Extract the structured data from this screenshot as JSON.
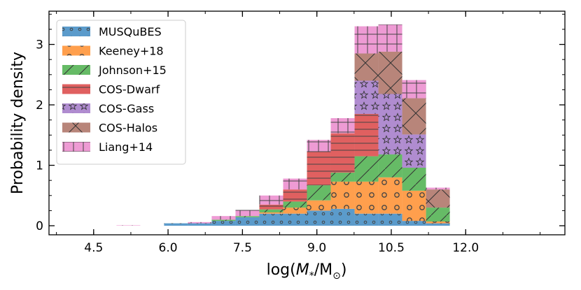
{
  "chart_data": {
    "type": "bar",
    "stacked": true,
    "title": "",
    "xlabel_prefix": "log(",
    "xlabel_math": "M",
    "xlabel_sub": "*",
    "xlabel_mid": "/M",
    "xlabel_sub2": "⊙",
    "xlabel_suffix": ")",
    "ylabel": "Probability density",
    "xlim": [
      3.6,
      14.0
    ],
    "ylim": [
      -0.15,
      3.55
    ],
    "xticks": [
      4.5,
      6.0,
      7.5,
      9.0,
      10.5,
      12.0
    ],
    "xtick_labels": [
      "4.5",
      "6.0",
      "7.5",
      "9.0",
      "10.5",
      "12.0"
    ],
    "yticks": [
      0,
      1,
      2,
      3
    ],
    "ytick_labels": [
      "0",
      "1",
      "2",
      "3"
    ],
    "bin_edges": [
      4.0,
      4.48,
      4.96,
      5.44,
      5.92,
      6.4,
      6.88,
      7.36,
      7.84,
      8.32,
      8.8,
      9.28,
      9.76,
      10.24,
      10.72,
      11.2,
      11.68,
      12.16,
      12.64,
      13.12
    ],
    "legend_location": "upper-left",
    "series": [
      {
        "name": "MUSQuBES",
        "color": "#5b9bcb",
        "hatch": "dots",
        "values": [
          0,
          0,
          0,
          0,
          0.04,
          0.04,
          0.08,
          0.14,
          0.2,
          0.2,
          0.25,
          0.28,
          0.2,
          0.2,
          0.08,
          0.04,
          0,
          0,
          0
        ]
      },
      {
        "name": "Keeney+18",
        "color": "#ff9f4d",
        "hatch": "rings",
        "values": [
          0,
          0,
          0,
          0,
          0,
          0,
          0,
          0,
          0.02,
          0.1,
          0.17,
          0.45,
          0.53,
          0.6,
          0.5,
          0.03,
          0,
          0,
          0
        ]
      },
      {
        "name": "Johnson+15",
        "color": "#66bb66",
        "hatch": "slash",
        "values": [
          0,
          0,
          0,
          0,
          0,
          0,
          0.02,
          0.02,
          0.05,
          0.1,
          0.25,
          0.15,
          0.42,
          0.38,
          0.38,
          0.23,
          0,
          0,
          0
        ]
      },
      {
        "name": "COS-Dwarf",
        "color": "#e06060",
        "hatch": "hlines",
        "values": [
          0,
          0,
          0,
          0,
          0,
          0,
          0,
          0,
          0.08,
          0.2,
          0.55,
          0.65,
          0.7,
          0,
          0,
          0,
          0,
          0,
          0
        ]
      },
      {
        "name": "COS-Gass",
        "color": "#b08cd0",
        "hatch": "stars",
        "values": [
          0,
          0,
          0,
          0,
          0,
          0,
          0,
          0,
          0,
          0,
          0,
          0,
          0.55,
          1.0,
          0.55,
          0,
          0,
          0,
          0
        ]
      },
      {
        "name": "COS-Halos",
        "color": "#b8857a",
        "hatch": "cross",
        "values": [
          0,
          0,
          0,
          0,
          0,
          0,
          0,
          0,
          0,
          0,
          0,
          0,
          0.45,
          0.7,
          0.6,
          0.3,
          0,
          0,
          0
        ]
      },
      {
        "name": "Liang+14",
        "color": "#ee9bd4",
        "hatch": "grid",
        "values": [
          0,
          0,
          0.005,
          0,
          0,
          0.02,
          0.06,
          0.1,
          0.15,
          0.18,
          0.2,
          0.25,
          0.45,
          0.45,
          0.3,
          0.03,
          0,
          0,
          0
        ]
      }
    ]
  }
}
